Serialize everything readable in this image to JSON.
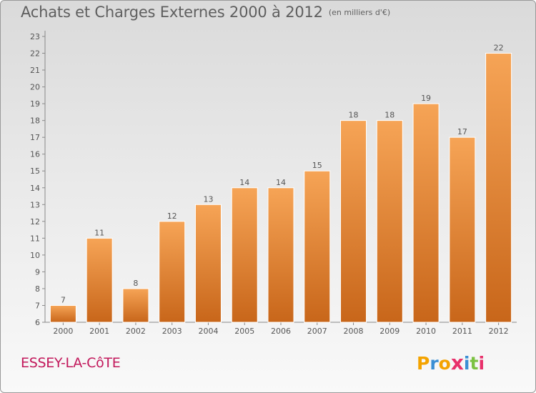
{
  "title": "Achats et Charges Externes 2000 à 2012",
  "unit": "(en milliers d'€)",
  "commune": "ESSEY-LA-CôTE",
  "logo": {
    "letters": [
      "P",
      "r",
      "o",
      "x",
      "i",
      "t",
      "i"
    ],
    "colors": [
      "#f4a300",
      "#3b8fd4",
      "#f4a300",
      "#e8316b",
      "#3b8fd4",
      "#7cc242",
      "#e8316b"
    ]
  },
  "colors": {
    "bar_top": "#f6a456",
    "bar_bottom": "#c8661a",
    "bar_border": "#ffffff",
    "axis": "#888888",
    "text": "#555555"
  },
  "chart_data": {
    "type": "bar",
    "categories": [
      "2000",
      "2001",
      "2002",
      "2003",
      "2004",
      "2005",
      "2006",
      "2007",
      "2008",
      "2009",
      "2010",
      "2011",
      "2012"
    ],
    "values": [
      7,
      11,
      8,
      12,
      13,
      14,
      14,
      15,
      18,
      18,
      19,
      17,
      22
    ],
    "ylim": [
      6,
      23
    ],
    "yticks": [
      "6",
      "7",
      "8",
      "9",
      "10",
      "11",
      "12",
      "13",
      "14",
      "15",
      "16",
      "17",
      "18",
      "19",
      "20",
      "21",
      "22",
      "23"
    ],
    "grid": false
  }
}
